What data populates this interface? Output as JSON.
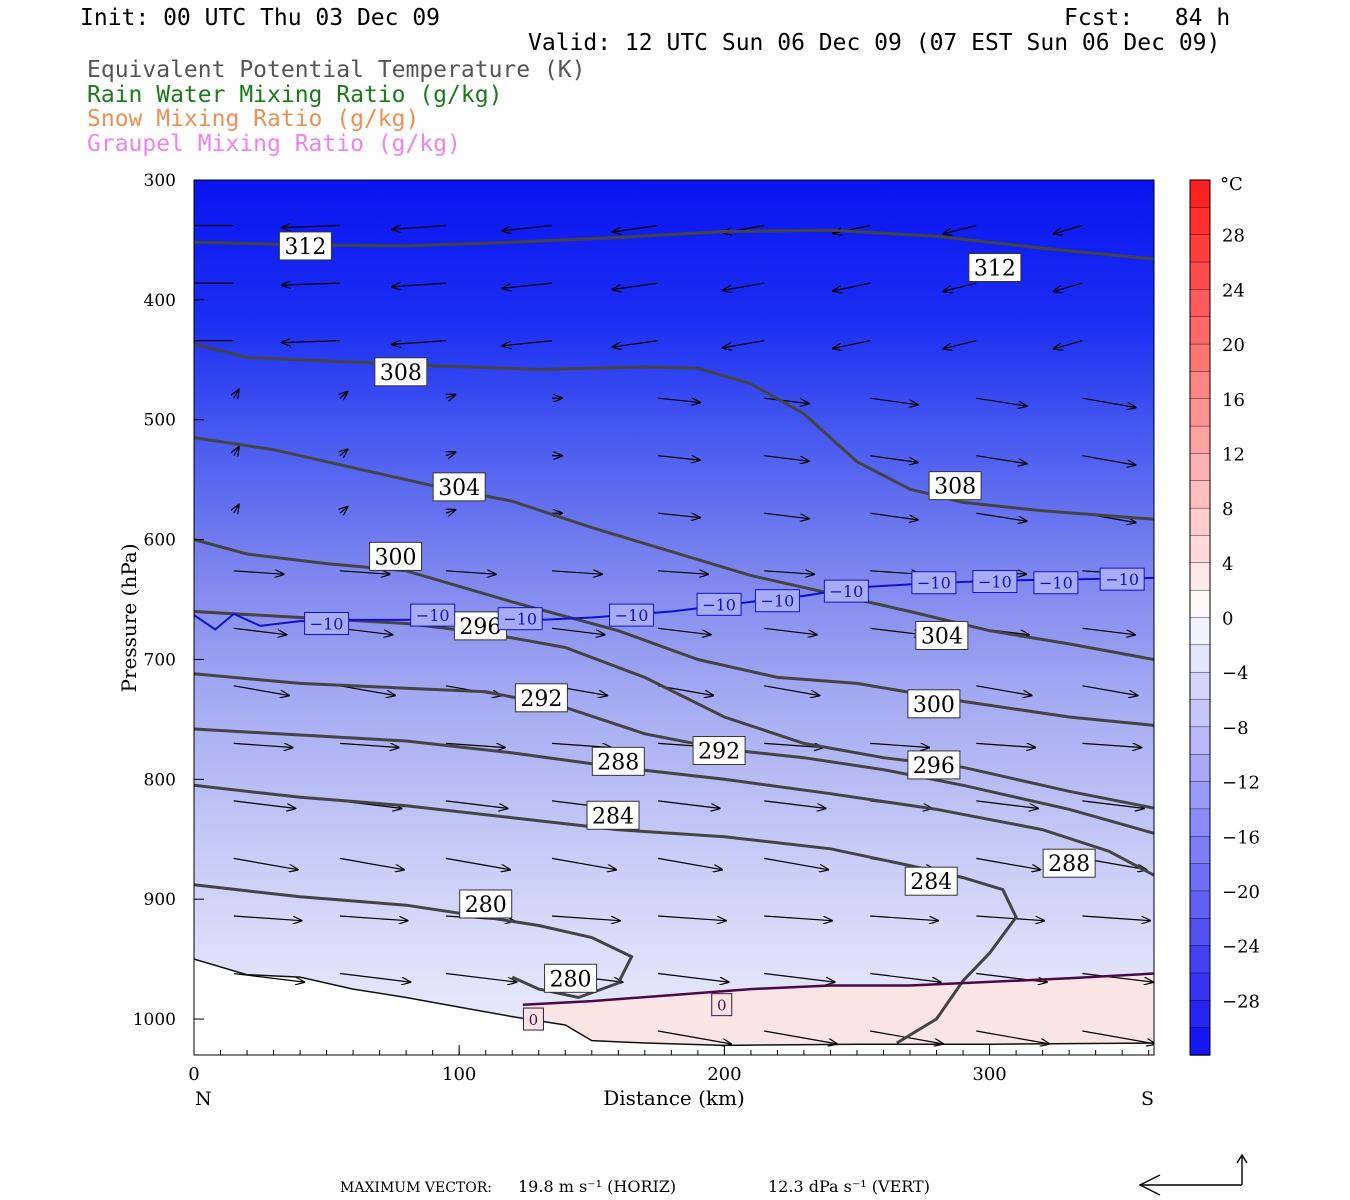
{
  "header": {
    "init": "Init: 00 UTC Thu 03 Dec 09",
    "fcst": "Fcst:   84 h",
    "valid": "Valid: 12 UTC Sun 06 Dec 09 (07 EST Sun 06 Dec 09)",
    "legend": [
      {
        "text": "Equivalent Potential Temperature (K)",
        "color": "#555555"
      },
      {
        "text": "Rain Water Mixing Ratio (g/kg)",
        "color": "#1a7a1a"
      },
      {
        "text": "Snow Mixing Ratio (g/kg)",
        "color": "#ee9055"
      },
      {
        "text": "Graupel Mixing Ratio (g/kg)",
        "color": "#ee82ee"
      }
    ]
  },
  "chart_data": {
    "type": "cross-section",
    "xlabel": "Distance (km)",
    "ylabel": "Pressure (hPa)",
    "xlim": [
      0,
      362
    ],
    "ylim": [
      1030,
      300
    ],
    "x_ticks": [
      0,
      100,
      200,
      300
    ],
    "y_ticks": [
      300,
      400,
      500,
      600,
      700,
      800,
      900,
      1000
    ],
    "left_end_label": "N",
    "right_end_label": "S",
    "colorbar": {
      "unit": "°C",
      "tick_labels": [
        "28",
        "24",
        "20",
        "16",
        "12",
        "8",
        "4",
        "0",
        "−4",
        "−8",
        "−12",
        "−16",
        "−20",
        "−24",
        "−28"
      ],
      "tick_values": [
        28,
        24,
        20,
        16,
        12,
        8,
        4,
        0,
        -4,
        -8,
        -12,
        -16,
        -20,
        -24,
        -28
      ],
      "range": [
        -32,
        32
      ]
    },
    "theta_e_contours": [
      {
        "label": "312",
        "points": [
          [
            0,
            352
          ],
          [
            40,
            354
          ],
          [
            80,
            355
          ],
          [
            120,
            352
          ],
          [
            160,
            348
          ],
          [
            200,
            343
          ],
          [
            240,
            342
          ],
          [
            280,
            347
          ],
          [
            320,
            357
          ],
          [
            362,
            366
          ]
        ],
        "labels_at": [
          [
            42,
            355
          ],
          [
            302,
            373
          ]
        ]
      },
      {
        "label": "308",
        "points": [
          [
            0,
            437
          ],
          [
            20,
            448
          ],
          [
            50,
            451
          ],
          [
            90,
            455
          ],
          [
            130,
            458
          ],
          [
            170,
            456
          ],
          [
            190,
            457
          ],
          [
            210,
            470
          ],
          [
            230,
            495
          ],
          [
            250,
            535
          ],
          [
            270,
            558
          ],
          [
            290,
            569
          ],
          [
            320,
            576
          ],
          [
            362,
            583
          ]
        ],
        "labels_at": [
          [
            78,
            460
          ],
          [
            287,
            555
          ]
        ]
      },
      {
        "label": "304",
        "points": [
          [
            0,
            515
          ],
          [
            30,
            525
          ],
          [
            60,
            540
          ],
          [
            90,
            555
          ],
          [
            120,
            568
          ],
          [
            150,
            590
          ],
          [
            180,
            610
          ],
          [
            210,
            630
          ],
          [
            240,
            645
          ],
          [
            270,
            660
          ],
          [
            300,
            676
          ],
          [
            330,
            687
          ],
          [
            362,
            700
          ]
        ],
        "labels_at": [
          [
            100,
            556
          ],
          [
            282,
            680
          ]
        ]
      },
      {
        "label": "300",
        "points": [
          [
            0,
            600
          ],
          [
            20,
            612
          ],
          [
            50,
            620
          ],
          [
            80,
            626
          ],
          [
            120,
            652
          ],
          [
            160,
            676
          ],
          [
            190,
            700
          ],
          [
            220,
            715
          ],
          [
            250,
            720
          ],
          [
            290,
            735
          ],
          [
            330,
            748
          ],
          [
            362,
            755
          ]
        ],
        "labels_at": [
          [
            76,
            614
          ],
          [
            279,
            737
          ]
        ]
      },
      {
        "label": "296",
        "points": [
          [
            0,
            660
          ],
          [
            40,
            665
          ],
          [
            80,
            670
          ],
          [
            110,
            678
          ],
          [
            140,
            690
          ],
          [
            170,
            715
          ],
          [
            200,
            748
          ],
          [
            230,
            770
          ],
          [
            260,
            782
          ],
          [
            290,
            790
          ],
          [
            330,
            810
          ],
          [
            362,
            824
          ]
        ],
        "labels_at": [
          [
            108,
            672
          ],
          [
            279,
            788
          ]
        ]
      },
      {
        "label": "292",
        "points": [
          [
            0,
            712
          ],
          [
            40,
            720
          ],
          [
            80,
            724
          ],
          [
            110,
            727
          ],
          [
            140,
            740
          ],
          [
            170,
            762
          ],
          [
            200,
            775
          ],
          [
            230,
            782
          ],
          [
            260,
            792
          ],
          [
            290,
            805
          ],
          [
            330,
            825
          ],
          [
            362,
            845
          ]
        ],
        "labels_at": [
          [
            131,
            732
          ],
          [
            198,
            776
          ]
        ]
      },
      {
        "label": "288",
        "points": [
          [
            0,
            758
          ],
          [
            40,
            763
          ],
          [
            80,
            768
          ],
          [
            120,
            778
          ],
          [
            160,
            790
          ],
          [
            200,
            800
          ],
          [
            240,
            812
          ],
          [
            280,
            825
          ],
          [
            320,
            842
          ],
          [
            345,
            860
          ],
          [
            362,
            880
          ]
        ],
        "labels_at": [
          [
            160,
            785
          ],
          [
            330,
            870
          ]
        ]
      },
      {
        "label": "284",
        "points": [
          [
            0,
            805
          ],
          [
            40,
            815
          ],
          [
            80,
            822
          ],
          [
            120,
            832
          ],
          [
            160,
            842
          ],
          [
            200,
            848
          ],
          [
            240,
            858
          ],
          [
            270,
            872
          ],
          [
            290,
            882
          ],
          [
            305,
            892
          ],
          [
            310,
            915
          ],
          [
            300,
            945
          ],
          [
            290,
            968
          ],
          [
            280,
            1000
          ],
          [
            265,
            1020
          ]
        ],
        "labels_at": [
          [
            158,
            830
          ],
          [
            278,
            885
          ]
        ]
      },
      {
        "label": "280",
        "points": [
          [
            0,
            888
          ],
          [
            40,
            898
          ],
          [
            80,
            905
          ],
          [
            110,
            915
          ],
          [
            130,
            922
          ],
          [
            150,
            932
          ],
          [
            165,
            948
          ],
          [
            160,
            970
          ],
          [
            145,
            982
          ],
          [
            130,
            975
          ],
          [
            120,
            965
          ]
        ],
        "labels_at": [
          [
            110,
            904
          ],
          [
            142,
            966
          ]
        ]
      }
    ],
    "isotherm_minus10": {
      "label": "−10",
      "points": [
        [
          0,
          663
        ],
        [
          8,
          675
        ],
        [
          15,
          662
        ],
        [
          25,
          672
        ],
        [
          40,
          668
        ],
        [
          60,
          667
        ],
        [
          80,
          667
        ],
        [
          100,
          665
        ],
        [
          120,
          668
        ],
        [
          150,
          665
        ],
        [
          180,
          660
        ],
        [
          210,
          652
        ],
        [
          230,
          647
        ],
        [
          250,
          640
        ],
        [
          280,
          636
        ],
        [
          310,
          634
        ],
        [
          362,
          632
        ]
      ],
      "labels_at": [
        [
          50,
          670
        ],
        [
          90,
          663
        ],
        [
          123,
          666
        ],
        [
          165,
          663
        ],
        [
          198,
          654
        ],
        [
          220,
          651
        ],
        [
          246,
          643
        ],
        [
          279,
          636
        ],
        [
          302,
          635
        ],
        [
          325,
          636
        ],
        [
          350,
          633
        ]
      ]
    },
    "isotherm_zero": {
      "label": "0",
      "points": [
        [
          124,
          988
        ],
        [
          150,
          985
        ],
        [
          180,
          980
        ],
        [
          210,
          975
        ],
        [
          240,
          972
        ],
        [
          270,
          972
        ],
        [
          300,
          969
        ],
        [
          330,
          966
        ],
        [
          362,
          962
        ]
      ],
      "labels_at": [
        [
          199,
          988
        ],
        [
          128,
          1000
        ]
      ]
    },
    "terrain": {
      "points": [
        [
          0,
          950
        ],
        [
          20,
          963
        ],
        [
          40,
          965
        ],
        [
          60,
          975
        ],
        [
          80,
          982
        ],
        [
          100,
          990
        ],
        [
          120,
          998
        ],
        [
          140,
          1005
        ],
        [
          150,
          1018
        ],
        [
          170,
          1020
        ],
        [
          200,
          1022
        ],
        [
          250,
          1021
        ],
        [
          300,
          1021
        ],
        [
          362,
          1020
        ]
      ]
    },
    "max_vector": {
      "label": "MAXIMUM VECTOR:",
      "horiz": "19.8 m s⁻¹ (HORIZ)",
      "vert": "12.3 dPa s⁻¹ (VERT)"
    }
  }
}
